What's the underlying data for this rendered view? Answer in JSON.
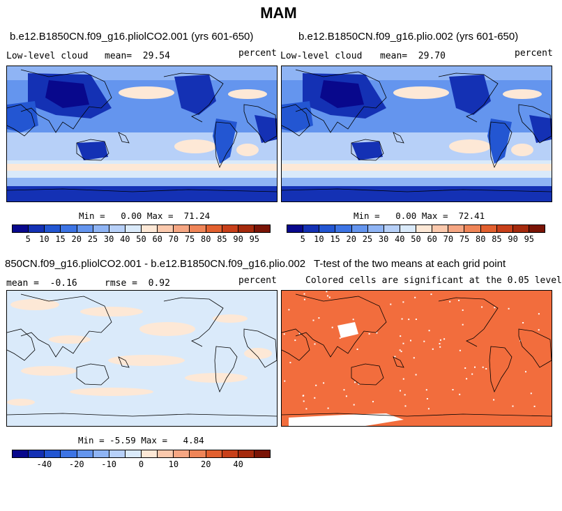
{
  "figure": {
    "title": "MAM"
  },
  "chart_data": [
    {
      "type": "heatmap",
      "title": "b.e12.B1850CN.f09_g16.pliolCO2.001 (yrs 601-650)",
      "left_label": "Low-level cloud",
      "mean_label": "mean=",
      "mean_value": "29.54",
      "units": "percent",
      "stats": {
        "min_label": "Min =",
        "min": "0.00",
        "max_label": "Max =",
        "max": "71.24"
      },
      "colorbar": {
        "colors": [
          "#08088c",
          "#1431b4",
          "#2356d2",
          "#3d74e4",
          "#6495ee",
          "#8fb4f4",
          "#b7d0f8",
          "#daeafa",
          "#fde8d6",
          "#fbc9ad",
          "#f5a683",
          "#ef8558",
          "#e2602f",
          "#c8401a",
          "#a52a0d",
          "#7a1406"
        ],
        "labels": [
          "5",
          "10",
          "15",
          "20",
          "25",
          "30",
          "40",
          "50",
          "60",
          "70",
          "75",
          "80",
          "85",
          "90",
          "95"
        ]
      }
    },
    {
      "type": "heatmap",
      "title": "b.e12.B1850CN.f09_g16.plio.002 (yrs 601-650)",
      "left_label": "Low-level cloud",
      "mean_label": "mean=",
      "mean_value": "29.70",
      "units": "percent",
      "stats": {
        "min_label": "Min =",
        "min": "0.00",
        "max_label": "Max =",
        "max": "72.41"
      },
      "colorbar": {
        "colors": [
          "#08088c",
          "#1431b4",
          "#2356d2",
          "#3d74e4",
          "#6495ee",
          "#8fb4f4",
          "#b7d0f8",
          "#daeafa",
          "#fde8d6",
          "#fbc9ad",
          "#f5a683",
          "#ef8558",
          "#e2602f",
          "#c8401a",
          "#a52a0d",
          "#7a1406"
        ],
        "labels": [
          "5",
          "10",
          "15",
          "20",
          "25",
          "30",
          "40",
          "50",
          "60",
          "70",
          "75",
          "80",
          "85",
          "90",
          "95"
        ]
      }
    },
    {
      "type": "heatmap",
      "title": "850CN.f09_g16.pliolCO2.001 - b.e12.B1850CN.f09_g16.plio.002",
      "mean_label": "mean =",
      "mean_value": "-0.16",
      "rmse_label": "rmse =",
      "rmse_value": "0.92",
      "units": "percent",
      "stats": {
        "min_label": "Min =",
        "min": "-5.59",
        "max_label": "Max =",
        "max": "4.84"
      },
      "colorbar": {
        "colors": [
          "#08088c",
          "#1431b4",
          "#2356d2",
          "#3d74e4",
          "#6495ee",
          "#8fb4f4",
          "#b7d0f8",
          "#daeafa",
          "#fde8d6",
          "#fbc9ad",
          "#f5a683",
          "#ef8558",
          "#e2602f",
          "#c8401a",
          "#a52a0d",
          "#7a1406"
        ],
        "labels": [
          "-40",
          "-20",
          "-10",
          "0",
          "10",
          "20",
          "40"
        ]
      }
    },
    {
      "type": "heatmap",
      "title": "T-test of the two means at each grid point",
      "subtitle": "Colored cells are significant at the 0.05 level",
      "significant_color": "#f26d3d"
    }
  ]
}
